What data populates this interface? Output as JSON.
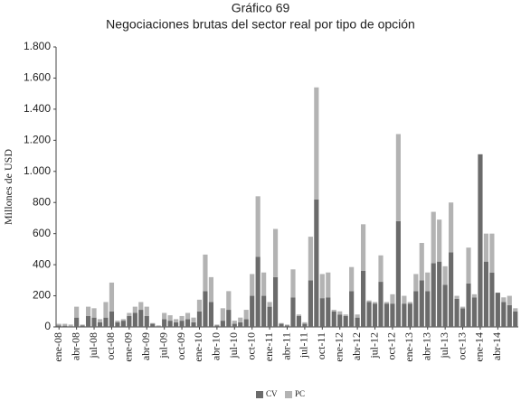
{
  "chart_data": {
    "type": "stacked_bar",
    "title": "Gráfico 69",
    "subtitle": "Negociaciones brutas del sector real por tipo de opción",
    "y_label": "Millones de USD",
    "categories": [
      "ene-08",
      null,
      null,
      "abr-08",
      null,
      null,
      "jul-08",
      null,
      null,
      "oct-08",
      null,
      null,
      "ene-09",
      null,
      null,
      "abr-09",
      null,
      null,
      "jul-09",
      null,
      null,
      "oct-09",
      null,
      null,
      "ene-10",
      null,
      null,
      "abr-10",
      null,
      null,
      "jul-10",
      null,
      null,
      "oct-10",
      null,
      null,
      "ene-11",
      null,
      null,
      "abr-11",
      null,
      null,
      "jul-11",
      null,
      null,
      "oct-11",
      null,
      null,
      "ene-12",
      null,
      null,
      "abr-12",
      null,
      null,
      "jul-12",
      null,
      null,
      "oct-12",
      null,
      null,
      "ene-13",
      null,
      null,
      "abr-13",
      null,
      null,
      "jul-13",
      null,
      null,
      "oct-13",
      null,
      null,
      "ene-14",
      null,
      null,
      "abr-14",
      null,
      null,
      null
    ],
    "series": [
      {
        "name": "CV",
        "color": "#6b6b6b",
        "values": [
          10,
          8,
          5,
          60,
          10,
          70,
          60,
          30,
          60,
          100,
          30,
          40,
          70,
          90,
          110,
          70,
          20,
          5,
          50,
          40,
          30,
          40,
          50,
          30,
          100,
          230,
          160,
          10,
          40,
          110,
          20,
          30,
          50,
          200,
          450,
          200,
          130,
          320,
          20,
          10,
          190,
          70,
          20,
          300,
          820,
          185,
          190,
          100,
          80,
          70,
          230,
          60,
          360,
          160,
          150,
          290,
          150,
          150,
          680,
          150,
          150,
          230,
          300,
          230,
          410,
          420,
          270,
          480,
          180,
          120,
          280,
          190,
          1110,
          420,
          350,
          220,
          160,
          140,
          100
        ]
      },
      {
        "name": "PC",
        "color": "#b3b3b3",
        "values": [
          10,
          12,
          10,
          70,
          5,
          60,
          60,
          20,
          100,
          185,
          10,
          10,
          20,
          40,
          50,
          60,
          5,
          5,
          40,
          35,
          20,
          30,
          40,
          30,
          75,
          235,
          160,
          5,
          80,
          120,
          20,
          30,
          60,
          140,
          390,
          150,
          30,
          310,
          5,
          5,
          180,
          10,
          10,
          280,
          720,
          155,
          160,
          10,
          20,
          10,
          155,
          20,
          300,
          10,
          10,
          170,
          10,
          60,
          560,
          50,
          10,
          110,
          240,
          120,
          330,
          270,
          120,
          320,
          20,
          10,
          230,
          20,
          0,
          180,
          250,
          0,
          30,
          60,
          20
        ]
      }
    ],
    "ylim": [
      0,
      1800
    ],
    "yticks": [
      0,
      200,
      400,
      600,
      800,
      {
        "value": 1000,
        "label": "1.000"
      },
      {
        "value": 1200,
        "label": "1.200"
      },
      {
        "value": 1400,
        "label": "1.400"
      },
      {
        "value": 1600,
        "label": "1.600"
      },
      {
        "value": 1800,
        "label": "1.800"
      }
    ],
    "legend": "bottom"
  }
}
